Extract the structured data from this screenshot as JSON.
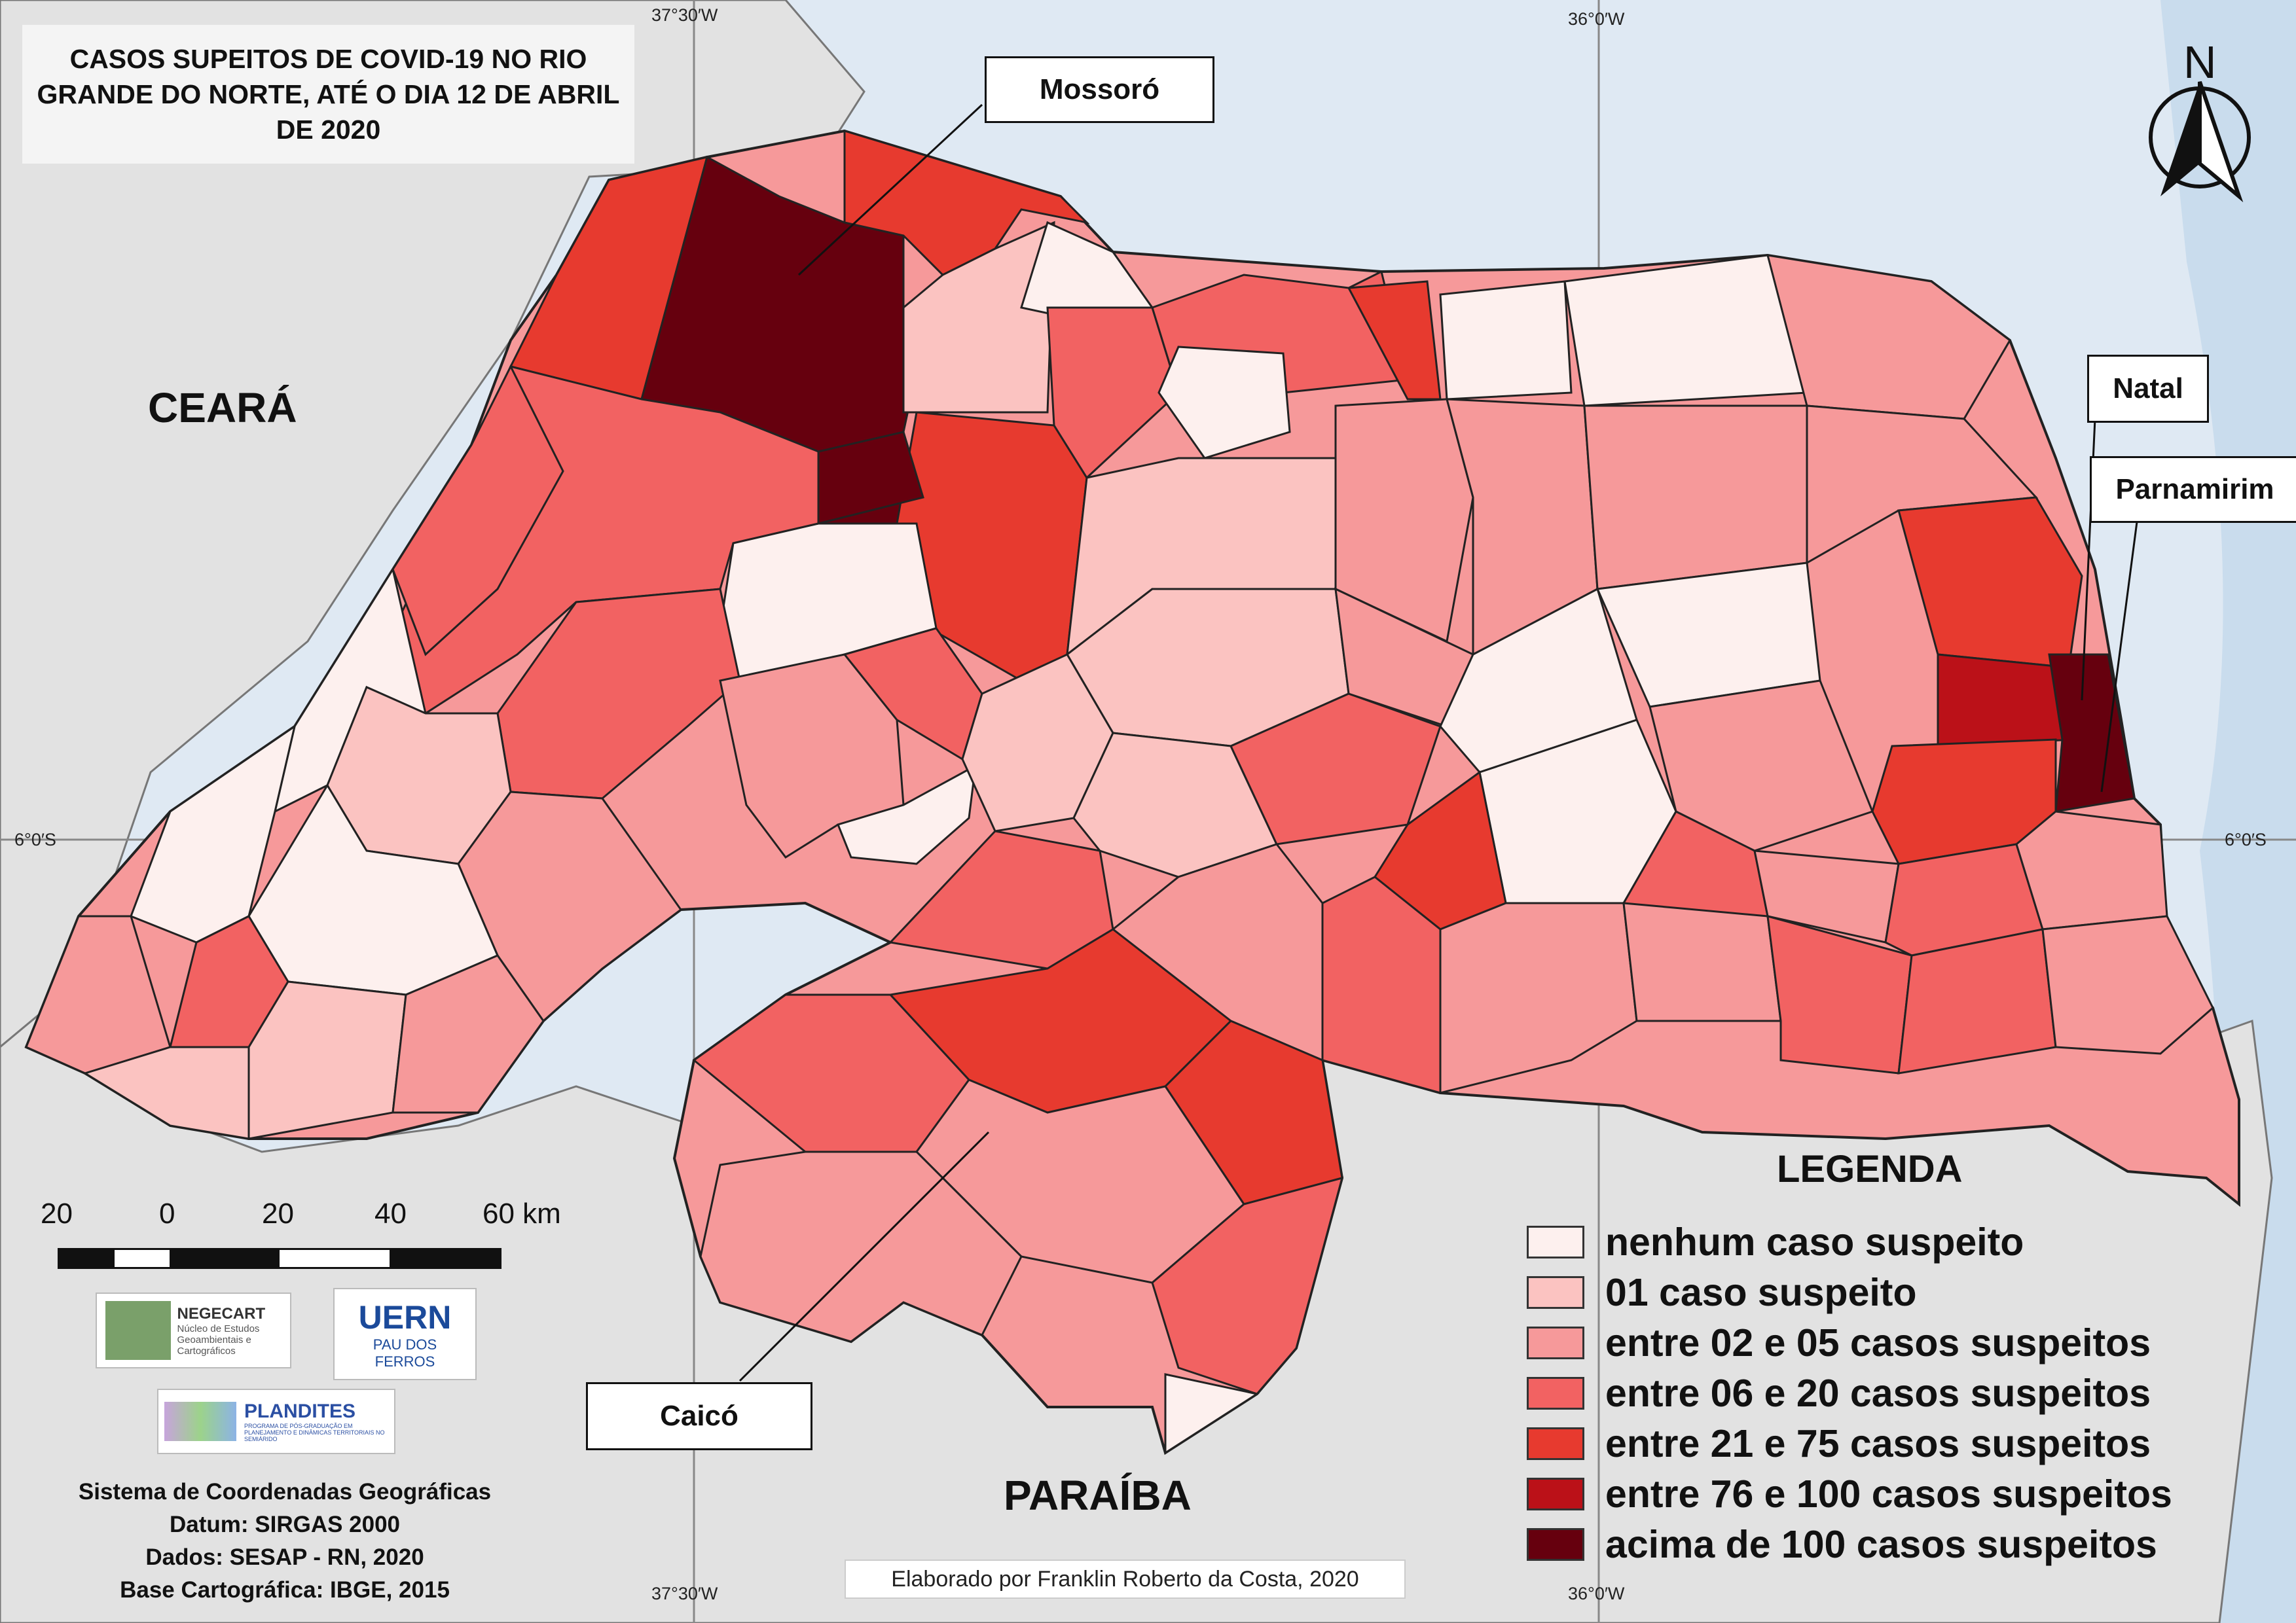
{
  "title": "CASOS SUPEITOS DE COVID-19 NO RIO GRANDE DO NORTE, ATÉ O DIA 12 DE ABRIL DE 2020",
  "neighbor_states": {
    "ceara": "CEARÁ",
    "paraiba": "PARAÍBA"
  },
  "callouts": {
    "mossoro": "Mossoró",
    "natal": "Natal",
    "parnamirim": "Parnamirim",
    "caico": "Caicó"
  },
  "coordinates": {
    "lon_west_top": "37°30′W",
    "lon_east_top": "36°0′W",
    "lon_west_bottom": "37°30′W",
    "lon_east_bottom": "36°0′W",
    "lat_left": "6°0′S",
    "lat_right": "6°0′S"
  },
  "north_arrow": {
    "letter": "N",
    "icon": "north-arrow-icon"
  },
  "legend": {
    "title": "LEGENDA",
    "items": [
      {
        "label": "nenhum caso suspeito",
        "color": "#fdf0ee"
      },
      {
        "label": "01 caso suspeito",
        "color": "#fbc3c1"
      },
      {
        "label": "entre 02 e 05 casos suspeitos",
        "color": "#f6999a"
      },
      {
        "label": "entre 06 e 20 casos suspeitos",
        "color": "#f26262"
      },
      {
        "label": "entre 21 e 75 casos suspeitos",
        "color": "#e73a2f"
      },
      {
        "label": "entre 76 e 100 casos suspeitos",
        "color": "#bb1118"
      },
      {
        "label": "acima de 100 casos suspeitos",
        "color": "#66000e"
      }
    ]
  },
  "scale_bar": {
    "labels": [
      "20",
      "0",
      "20",
      "40",
      "60 km"
    ]
  },
  "logos": {
    "negecart": {
      "name": "NEGECART",
      "subtitle": "Núcleo de Estudos Geoambientais e Cartográficos"
    },
    "uern": {
      "name": "UERN",
      "subtitle": "PAU DOS FERROS"
    },
    "plandites": {
      "name": "PLANDITES",
      "subtitle": "PROGRAMA DE PÓS-GRADUAÇÃO EM PLANEJAMENTO E DINÂMICAS TERRITORIAIS NO SEMIÁRIDO"
    }
  },
  "info": {
    "line1": "Sistema de Coordenadas Geográficas",
    "line2": "Datum: SIRGAS 2000",
    "line3": "Dados: SESAP - RN, 2020",
    "line4": "Base Cartográfica: IBGE, 2015"
  },
  "credit": "Elaborado por Franklin Roberto da Costa, 2020",
  "colors": {
    "ocean": "#dfe9f3",
    "land": "#e2e2e2",
    "border": "#222222"
  }
}
